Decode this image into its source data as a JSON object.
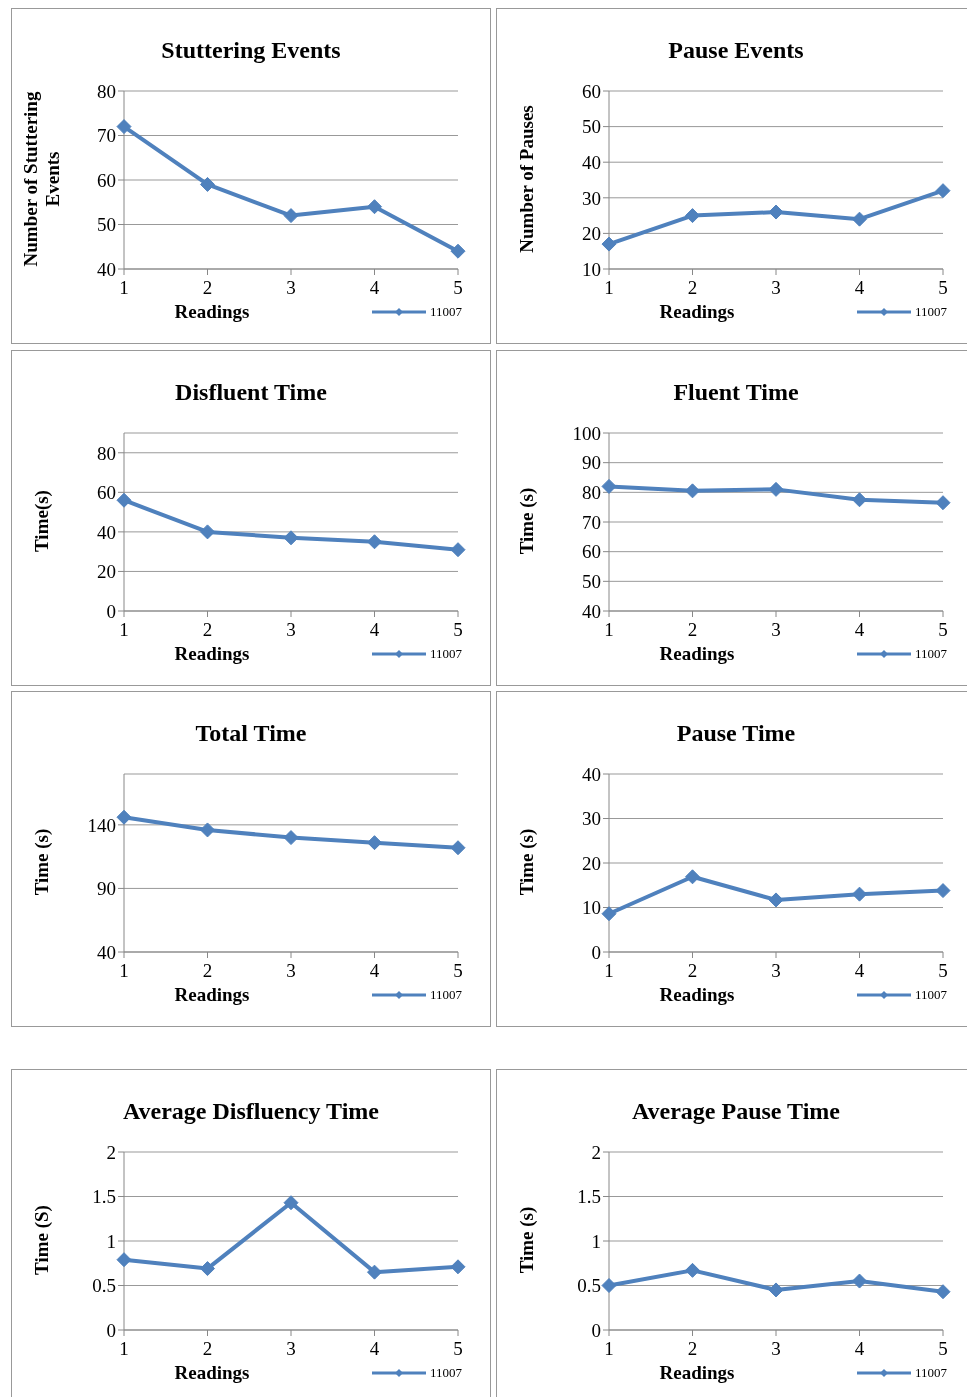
{
  "chart_data": [
    {
      "type": "line",
      "title": "Stuttering Events",
      "xlabel": "Readings",
      "ylabel": "Number of Stuttering Events",
      "categories": [
        "1",
        "2",
        "3",
        "4",
        "5"
      ],
      "series": [
        {
          "name": "11007",
          "color": "#4f81bd",
          "values": [
            72,
            59,
            52,
            54,
            44
          ]
        }
      ],
      "ylim": [
        40,
        80
      ],
      "yticks": [
        40,
        50,
        60,
        70,
        80
      ],
      "grid": "y",
      "legend": "bottom right",
      "marker": "diamond"
    },
    {
      "type": "line",
      "title": "Pause Events",
      "xlabel": "Readings",
      "ylabel": "Number of Pauses",
      "categories": [
        "1",
        "2",
        "3",
        "4",
        "5"
      ],
      "series": [
        {
          "name": "11007",
          "color": "#4f81bd",
          "values": [
            17,
            25,
            26,
            24,
            32
          ]
        }
      ],
      "ylim": [
        10,
        60
      ],
      "yticks": [
        10,
        20,
        30,
        40,
        50,
        60
      ],
      "grid": "y",
      "legend": "bottom right",
      "marker": "diamond"
    },
    {
      "type": "line",
      "title": "Disfluent Time",
      "xlabel": "Readings",
      "ylabel": "Time(s)",
      "categories": [
        "1",
        "2",
        "3",
        "4",
        "5"
      ],
      "series": [
        {
          "name": "11007",
          "color": "#4f81bd",
          "values": [
            56,
            40,
            37,
            35,
            31
          ]
        }
      ],
      "ylim": [
        0,
        90
      ],
      "yticks": [
        0,
        20,
        40,
        60,
        80
      ],
      "grid": "y",
      "legend": "bottom right",
      "marker": "diamond"
    },
    {
      "type": "line",
      "title": "Fluent Time",
      "xlabel": "Readings",
      "ylabel": "Time (s)",
      "categories": [
        "1",
        "2",
        "3",
        "4",
        "5"
      ],
      "series": [
        {
          "name": "11007",
          "color": "#4f81bd",
          "values": [
            82,
            80.5,
            81,
            77.5,
            76.5
          ]
        }
      ],
      "ylim": [
        40,
        100
      ],
      "yticks": [
        40,
        50,
        60,
        70,
        80,
        90,
        100
      ],
      "grid": "y",
      "legend": "bottom right",
      "marker": "diamond"
    },
    {
      "type": "line",
      "title": "Total Time",
      "xlabel": "Readings",
      "ylabel": "Time (s)",
      "categories": [
        "1",
        "2",
        "3",
        "4",
        "5"
      ],
      "series": [
        {
          "name": "11007",
          "color": "#4f81bd",
          "values": [
            146,
            136,
            130,
            126,
            122
          ]
        }
      ],
      "ylim": [
        40,
        180
      ],
      "yticks": [
        40,
        90,
        140
      ],
      "grid": "y",
      "legend": "bottom right",
      "marker": "diamond"
    },
    {
      "type": "line",
      "title": "Pause Time",
      "xlabel": "Readings",
      "ylabel": "Time (s)",
      "categories": [
        "1",
        "2",
        "3",
        "4",
        "5"
      ],
      "series": [
        {
          "name": "11007",
          "color": "#4f81bd",
          "values": [
            8.6,
            16.9,
            11.7,
            13,
            13.8
          ]
        }
      ],
      "ylim": [
        0,
        40
      ],
      "yticks": [
        0,
        10,
        20,
        30,
        40
      ],
      "grid": "y",
      "legend": "bottom right",
      "marker": "diamond"
    },
    {
      "type": "line",
      "title": "Average Disfluency Time",
      "xlabel": "Readings",
      "ylabel": "Time (S)",
      "categories": [
        "1",
        "2",
        "3",
        "4",
        "5"
      ],
      "series": [
        {
          "name": "11007",
          "color": "#4f81bd",
          "values": [
            0.79,
            0.69,
            1.43,
            0.65,
            0.71
          ]
        }
      ],
      "ylim": [
        0,
        2
      ],
      "yticks": [
        0,
        0.5,
        1,
        1.5,
        2
      ],
      "grid": "y",
      "legend": "bottom right",
      "marker": "diamond"
    },
    {
      "type": "line",
      "title": "Average Pause Time",
      "xlabel": "Readings",
      "ylabel": "Time (s)",
      "categories": [
        "1",
        "2",
        "3",
        "4",
        "5"
      ],
      "series": [
        {
          "name": "11007",
          "color": "#4f81bd",
          "values": [
            0.5,
            0.67,
            0.45,
            0.55,
            0.43
          ]
        }
      ],
      "ylim": [
        0,
        2
      ],
      "yticks": [
        0,
        0.5,
        1,
        1.5,
        2
      ],
      "grid": "y",
      "legend": "bottom right",
      "marker": "diamond"
    }
  ]
}
